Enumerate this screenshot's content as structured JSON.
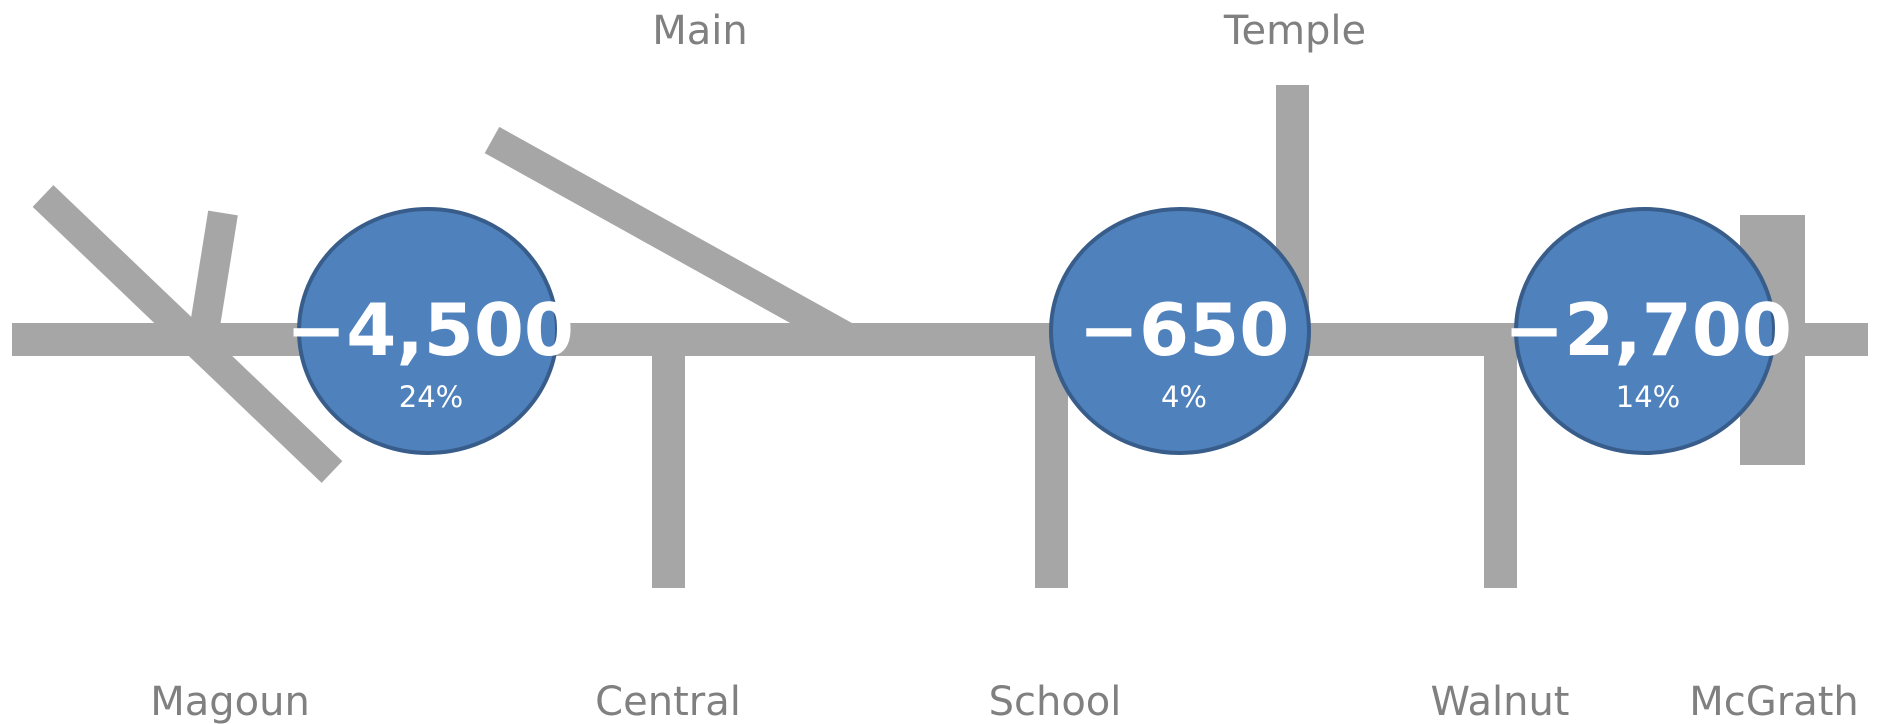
{
  "streets": {
    "main": "Main",
    "temple": "Temple",
    "magoun": "Magoun",
    "central": "Central",
    "school": "School",
    "walnut": "Walnut",
    "mcgrath": "McGrath"
  },
  "bubbles": [
    {
      "value": "−4,500",
      "percent": "24%"
    },
    {
      "value": "−650",
      "percent": "4%"
    },
    {
      "value": "−2,700",
      "percent": "14%"
    }
  ],
  "colors": {
    "road": "#a6a6a6",
    "bubble_fill": "#4f81bd",
    "bubble_stroke": "#385d8a",
    "label_text": "#808080",
    "bubble_text": "#ffffff"
  }
}
